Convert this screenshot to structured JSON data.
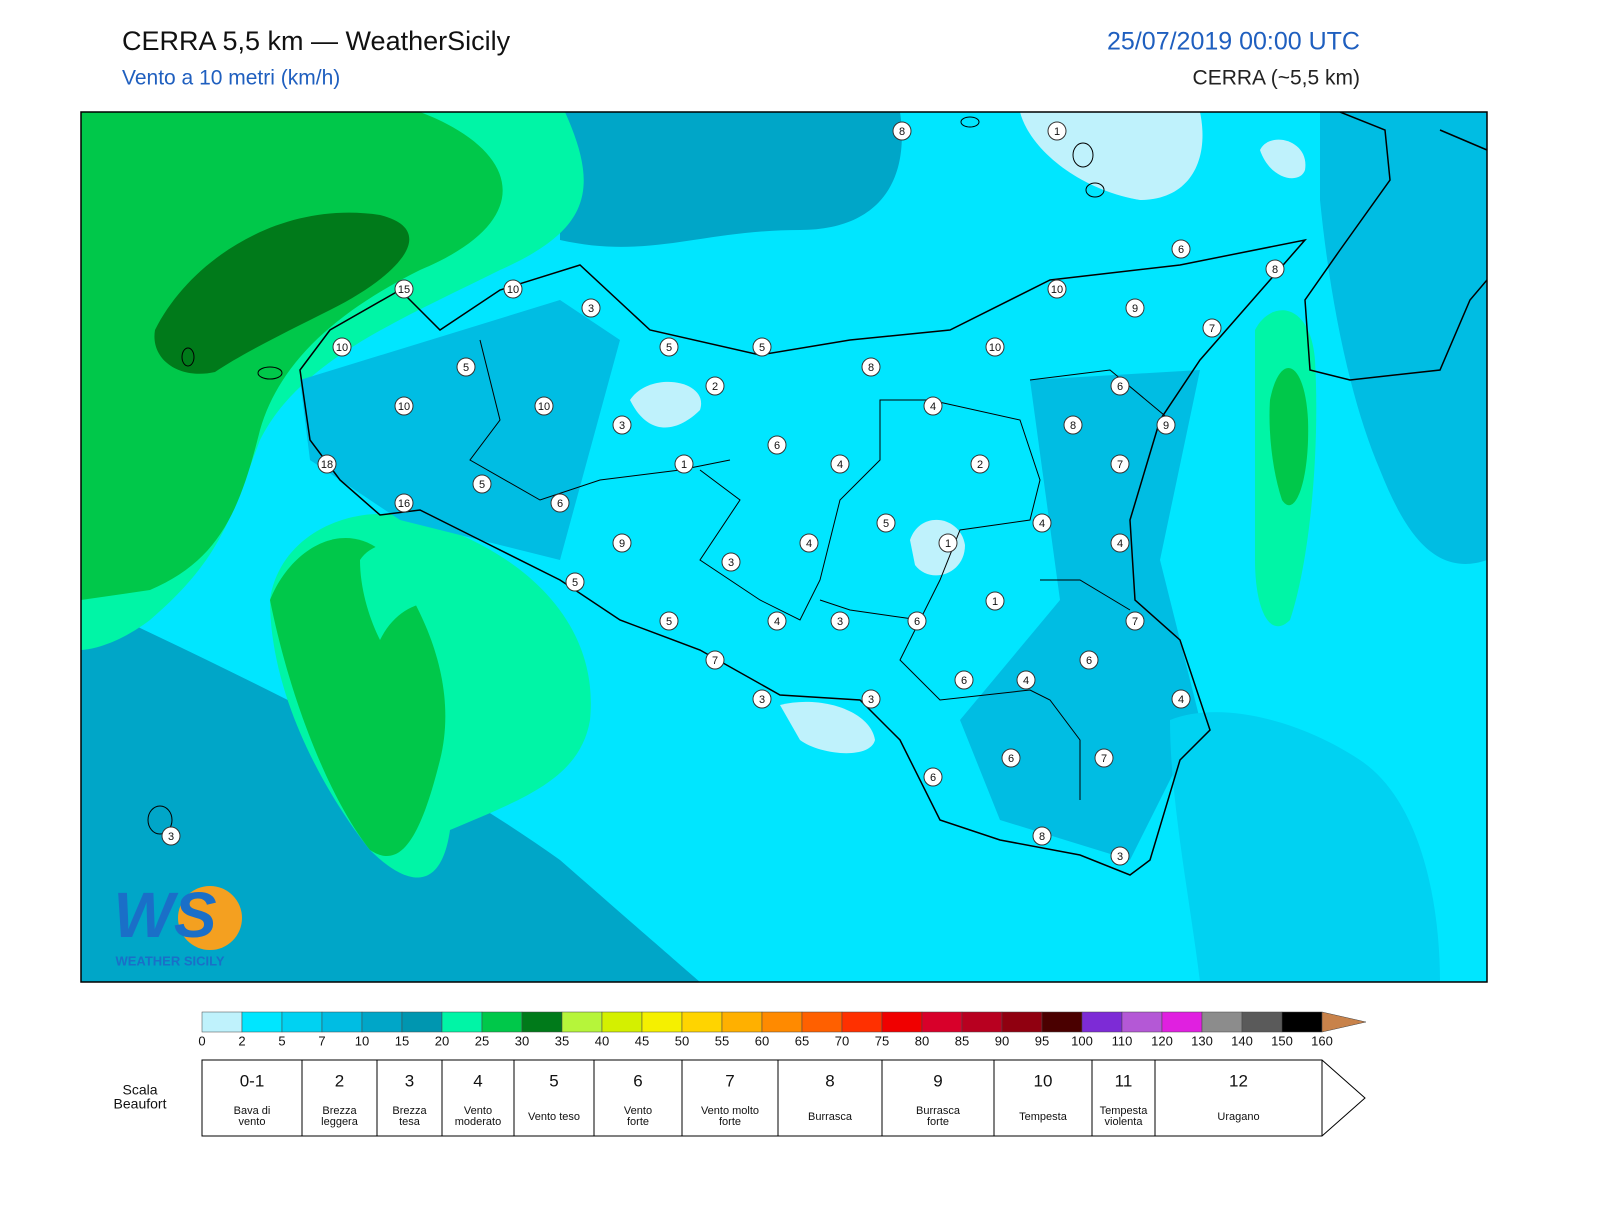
{
  "header": {
    "title": "CERRA 5,5 km — WeatherSicily",
    "subtitle": "Vento a 10 metri (km/h)",
    "datetime": "25/07/2019 00:00 UTC",
    "model": "CERRA (~5,5 km)"
  },
  "map": {
    "stations": [
      8,
      1,
      6,
      8,
      15,
      10,
      3,
      10,
      9,
      7,
      10,
      5,
      5,
      10,
      5,
      8,
      2,
      6,
      10,
      10,
      4,
      3,
      8,
      9,
      6,
      1,
      4,
      2,
      7,
      18,
      5,
      6,
      16,
      5,
      4,
      9,
      4,
      1,
      4,
      3,
      5,
      1,
      5,
      4,
      3,
      6,
      7,
      6,
      7,
      6,
      4,
      3,
      3,
      4,
      6,
      7,
      6,
      3,
      8,
      3
    ],
    "logo": {
      "mark": "WS",
      "name": "WEATHER SICILY"
    }
  },
  "colorbar": {
    "ticks": [
      0,
      2,
      5,
      7,
      10,
      15,
      20,
      25,
      30,
      35,
      40,
      45,
      50,
      55,
      60,
      65,
      70,
      75,
      80,
      85,
      90,
      95,
      100,
      110,
      120,
      130,
      140,
      150,
      160
    ],
    "colors": [
      "#bff2fc",
      "#00e6ff",
      "#00d2f2",
      "#00bde3",
      "#00a6c8",
      "#0096b0",
      "#00f5a6",
      "#00c84a",
      "#007a1a",
      "#b6f53a",
      "#d4f000",
      "#f5f000",
      "#ffd400",
      "#ffb000",
      "#ff8a00",
      "#ff6000",
      "#ff3000",
      "#f00000",
      "#d8002a",
      "#b80020",
      "#900010",
      "#4a0000",
      "#7d2bd6",
      "#b458d6",
      "#e020e0",
      "#8c8c8c",
      "#5a5a5a",
      "#000000",
      "#8a4a26",
      "#c8824a"
    ]
  },
  "beaufort": {
    "label": [
      "Scala",
      "Beaufort"
    ],
    "levels": [
      {
        "force": "0-1",
        "name": [
          "Bava di",
          "vento"
        ]
      },
      {
        "force": "2",
        "name": [
          "Brezza",
          "leggera"
        ]
      },
      {
        "force": "3",
        "name": [
          "Brezza",
          "tesa"
        ]
      },
      {
        "force": "4",
        "name": [
          "Vento",
          "moderato"
        ]
      },
      {
        "force": "5",
        "name": [
          "Vento teso"
        ]
      },
      {
        "force": "6",
        "name": [
          "Vento",
          "forte"
        ]
      },
      {
        "force": "7",
        "name": [
          "Vento molto",
          "forte"
        ]
      },
      {
        "force": "8",
        "name": [
          "Burrasca"
        ]
      },
      {
        "force": "9",
        "name": [
          "Burrasca",
          "forte"
        ]
      },
      {
        "force": "10",
        "name": [
          "Tempesta"
        ]
      },
      {
        "force": "11",
        "name": [
          "Tempesta",
          "violenta"
        ]
      },
      {
        "force": "12",
        "name": [
          "Uragano"
        ]
      }
    ]
  }
}
